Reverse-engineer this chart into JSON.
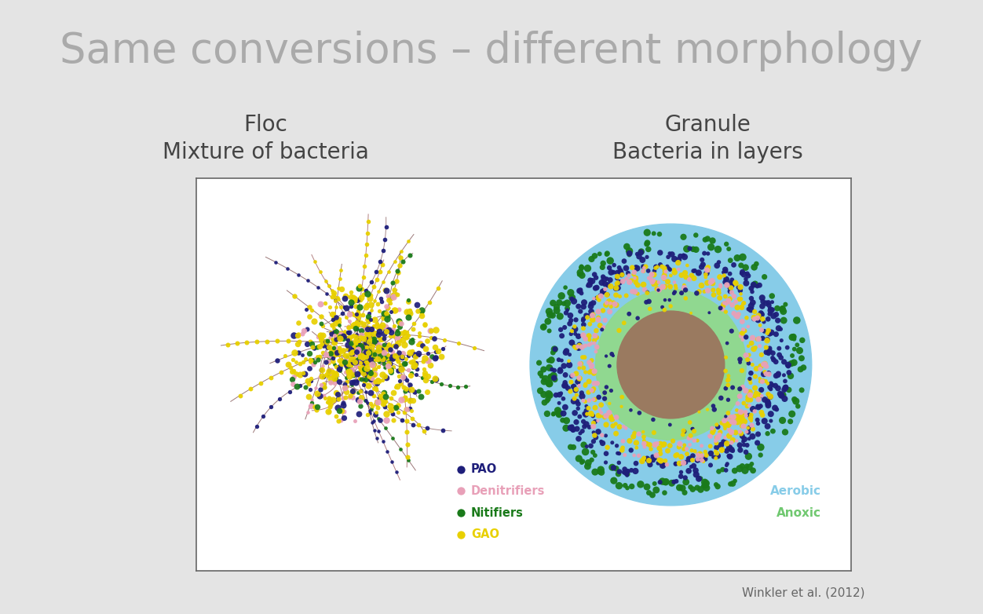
{
  "title": "Same conversions – different morphology",
  "title_color": "#aaaaaa",
  "title_fontsize": 38,
  "bg_color": "#e4e4e4",
  "box_bg": "#ffffff",
  "floc_label1": "Floc",
  "floc_label2": "Mixture of bacteria",
  "granule_label1": "Granule",
  "granule_label2": "Bacteria in layers",
  "subtitle_color": "#444444",
  "subtitle_fontsize": 20,
  "citation": "Winkler et al. (2012)",
  "pao_color": "#1e1e7a",
  "denitrifier_color": "#e8a0b8",
  "nitifier_color": "#1a7a1a",
  "gao_color": "#e8d000",
  "aerobic_color": "#87cce8",
  "anoxic_color": "#90d890",
  "core_color": "#9a7a60",
  "legend_pao": "PAO",
  "legend_denitrifiers": "Denitrifiers",
  "legend_nitifiers": "Nitifiers",
  "legend_gao": "GAO",
  "legend_aerobic": "Aerobic",
  "legend_anoxic": "Anoxic",
  "seed": 42
}
